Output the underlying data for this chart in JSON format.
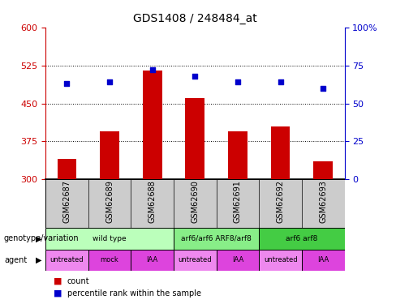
{
  "title": "GDS1408 / 248484_at",
  "samples": [
    "GSM62687",
    "GSM62689",
    "GSM62688",
    "GSM62690",
    "GSM62691",
    "GSM62692",
    "GSM62693"
  ],
  "bar_values": [
    340,
    395,
    515,
    460,
    395,
    405,
    335
  ],
  "bar_base": 300,
  "percentile_values": [
    63,
    64,
    72,
    68,
    64,
    64,
    60
  ],
  "ylim_left": [
    300,
    600
  ],
  "ylim_right": [
    0,
    100
  ],
  "yticks_left": [
    300,
    375,
    450,
    525,
    600
  ],
  "yticks_right": [
    0,
    25,
    50,
    75,
    100
  ],
  "bar_color": "#cc0000",
  "dot_color": "#0000cc",
  "hline_values": [
    375,
    450,
    525
  ],
  "genotype_groups": [
    {
      "label": "wild type",
      "start": 0,
      "end": 3,
      "color": "#bbffbb"
    },
    {
      "label": "arf6/arf6 ARF8/arf8",
      "start": 3,
      "end": 5,
      "color": "#88ee88"
    },
    {
      "label": "arf6 arf8",
      "start": 5,
      "end": 7,
      "color": "#44cc44"
    }
  ],
  "agent_labels": [
    "untreated",
    "mock",
    "IAA",
    "untreated",
    "IAA",
    "untreated",
    "IAA"
  ],
  "agent_colors": [
    "#ee88ee",
    "#dd44dd",
    "#dd44dd",
    "#ee88ee",
    "#dd44dd",
    "#ee88ee",
    "#dd44dd"
  ],
  "left_axis_color": "#cc0000",
  "right_axis_color": "#0000cc",
  "background_color": "#ffffff",
  "sample_box_color": "#cccccc",
  "grid_color": "#000000"
}
